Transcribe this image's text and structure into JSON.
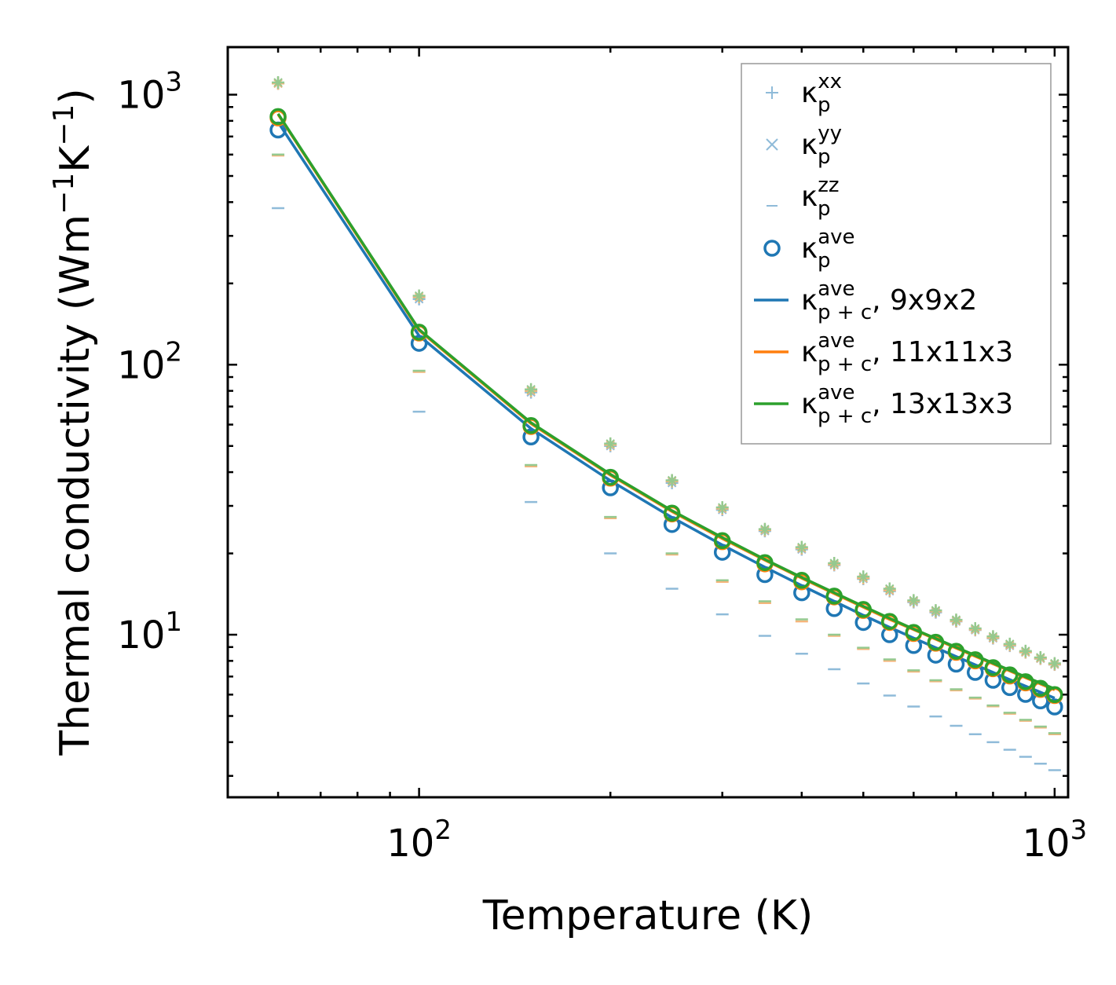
{
  "chart_data": {
    "type": "scatter",
    "xscale": "log",
    "yscale": "log",
    "xlabel": "Temperature (K)",
    "ylabel_text": "Thermal conductivity (Wm",
    "ylabel_exp1": "−1",
    "ylabel_mid": "K",
    "ylabel_exp2": "−1",
    "ylabel_close": ")",
    "xlim": [
      50,
      1050
    ],
    "ylim": [
      2.5,
      1500
    ],
    "x_ticks": [
      {
        "value": 100,
        "base": "10",
        "exp": "2"
      },
      {
        "value": 1000,
        "base": "10",
        "exp": "3"
      }
    ],
    "y_ticks": [
      {
        "value": 10,
        "base": "10",
        "exp": "1"
      },
      {
        "value": 100,
        "base": "10",
        "exp": "2"
      },
      {
        "value": 1000,
        "base": "10",
        "exp": "3"
      }
    ],
    "colors": {
      "blue": "#1f77b4",
      "orange": "#ff7f0e",
      "green": "#2ca02c",
      "blue_light": "#8fbbd9",
      "orange_light": "#f5b57a",
      "green_light": "#95c98f"
    },
    "x": [
      60,
      100,
      150,
      200,
      250,
      300,
      350,
      400,
      450,
      500,
      550,
      600,
      650,
      700,
      750,
      800,
      850,
      900,
      950,
      1000
    ],
    "series": [
      {
        "name": "9x9x2",
        "color_key": "blue",
        "kxx": [
          1100,
          175,
          79,
          50,
          36.5,
          29,
          24.2,
          20.7,
          18.1,
          16.1,
          14.5,
          13.2,
          12.1,
          11.2,
          10.4,
          9.7,
          9.1,
          8.6,
          8.15,
          7.75
        ],
        "kzz": [
          380,
          67,
          31,
          20,
          14.8,
          11.9,
          9.9,
          8.5,
          7.45,
          6.6,
          5.95,
          5.42,
          4.98,
          4.6,
          4.28,
          4.0,
          3.75,
          3.53,
          3.33,
          3.15
        ],
        "kave": [
          740,
          120,
          54,
          35,
          25.6,
          20.2,
          16.7,
          14.3,
          12.5,
          11.1,
          10.0,
          9.12,
          8.4,
          7.78,
          7.25,
          6.78,
          6.37,
          6.01,
          5.69,
          5.4
        ],
        "kpc": [
          790,
          128,
          58,
          37.2,
          27.2,
          21.5,
          17.8,
          15.2,
          13.3,
          11.8,
          10.65,
          9.72,
          8.95,
          8.3,
          7.74,
          7.25,
          6.82,
          6.45,
          6.12,
          5.82
        ]
      },
      {
        "name": "11x11x3",
        "color_key": "orange",
        "kxx": [
          1100,
          178,
          80,
          50.5,
          37,
          29.3,
          24.4,
          20.9,
          18.2,
          16.2,
          14.6,
          13.3,
          12.2,
          11.25,
          10.45,
          9.75,
          9.15,
          8.62,
          8.17,
          7.77
        ],
        "kzz": [
          595,
          94,
          42,
          27,
          19.8,
          15.7,
          13.1,
          11.2,
          9.9,
          8.85,
          8.0,
          7.3,
          6.72,
          6.22,
          5.8,
          5.43,
          5.1,
          4.8,
          4.53,
          4.28
        ],
        "kave": [
          820,
          131,
          59,
          38,
          28,
          22.1,
          18.3,
          15.7,
          13.8,
          12.3,
          11.1,
          10.1,
          9.3,
          8.6,
          8.0,
          7.48,
          7.03,
          6.63,
          6.27,
          5.95
        ],
        "kpc": [
          845,
          134,
          60.5,
          39,
          28.6,
          22.7,
          18.9,
          16.2,
          14.2,
          12.65,
          11.4,
          10.45,
          9.62,
          8.92,
          8.32,
          7.8,
          7.34,
          6.93,
          6.57,
          6.25
        ]
      },
      {
        "name": "13x13x3",
        "color_key": "green",
        "kxx": [
          1110,
          180,
          81,
          51,
          37.3,
          29.6,
          24.6,
          21.1,
          18.4,
          16.4,
          14.8,
          13.4,
          12.3,
          11.35,
          10.55,
          9.85,
          9.24,
          8.7,
          8.24,
          7.83
        ],
        "kzz": [
          600,
          95,
          42.5,
          27.3,
          20,
          15.9,
          13.3,
          11.4,
          10.0,
          8.95,
          8.1,
          7.38,
          6.78,
          6.28,
          5.85,
          5.47,
          5.14,
          4.84,
          4.57,
          4.32
        ],
        "kave": [
          830,
          132,
          59.5,
          38.3,
          28.2,
          22.3,
          18.5,
          15.9,
          13.9,
          12.4,
          11.2,
          10.2,
          9.38,
          8.68,
          8.08,
          7.55,
          7.1,
          6.7,
          6.33,
          6.0
        ],
        "kpc": [
          850,
          135,
          61,
          39.3,
          28.8,
          22.9,
          19.0,
          16.3,
          14.3,
          12.75,
          11.5,
          10.5,
          9.68,
          8.98,
          8.38,
          7.85,
          7.39,
          6.98,
          6.62,
          6.3
        ]
      }
    ],
    "legend": {
      "location": "top-right",
      "entries": [
        {
          "marker": "plus",
          "color_key": "blue_light",
          "sym": "κ",
          "sup": "xx",
          "sub": "p",
          "suffix": ""
        },
        {
          "marker": "cross",
          "color_key": "blue_light",
          "sym": "κ",
          "sup": "yy",
          "sub": "p",
          "suffix": ""
        },
        {
          "marker": "dash",
          "color_key": "blue_light",
          "sym": "κ",
          "sup": "zz",
          "sub": "p",
          "suffix": ""
        },
        {
          "marker": "circle",
          "color_key": "blue",
          "sym": "κ",
          "sup": "ave",
          "sub": "p",
          "suffix": ""
        },
        {
          "marker": "line",
          "color_key": "blue",
          "sym": "κ",
          "sup": "ave",
          "sub": "p + c",
          "suffix": ", 9x9x2"
        },
        {
          "marker": "line",
          "color_key": "orange",
          "sym": "κ",
          "sup": "ave",
          "sub": "p + c",
          "suffix": ", 11x11x3"
        },
        {
          "marker": "line",
          "color_key": "green",
          "sym": "κ",
          "sup": "ave",
          "sub": "p + c",
          "suffix": ", 13x13x3"
        }
      ]
    }
  }
}
